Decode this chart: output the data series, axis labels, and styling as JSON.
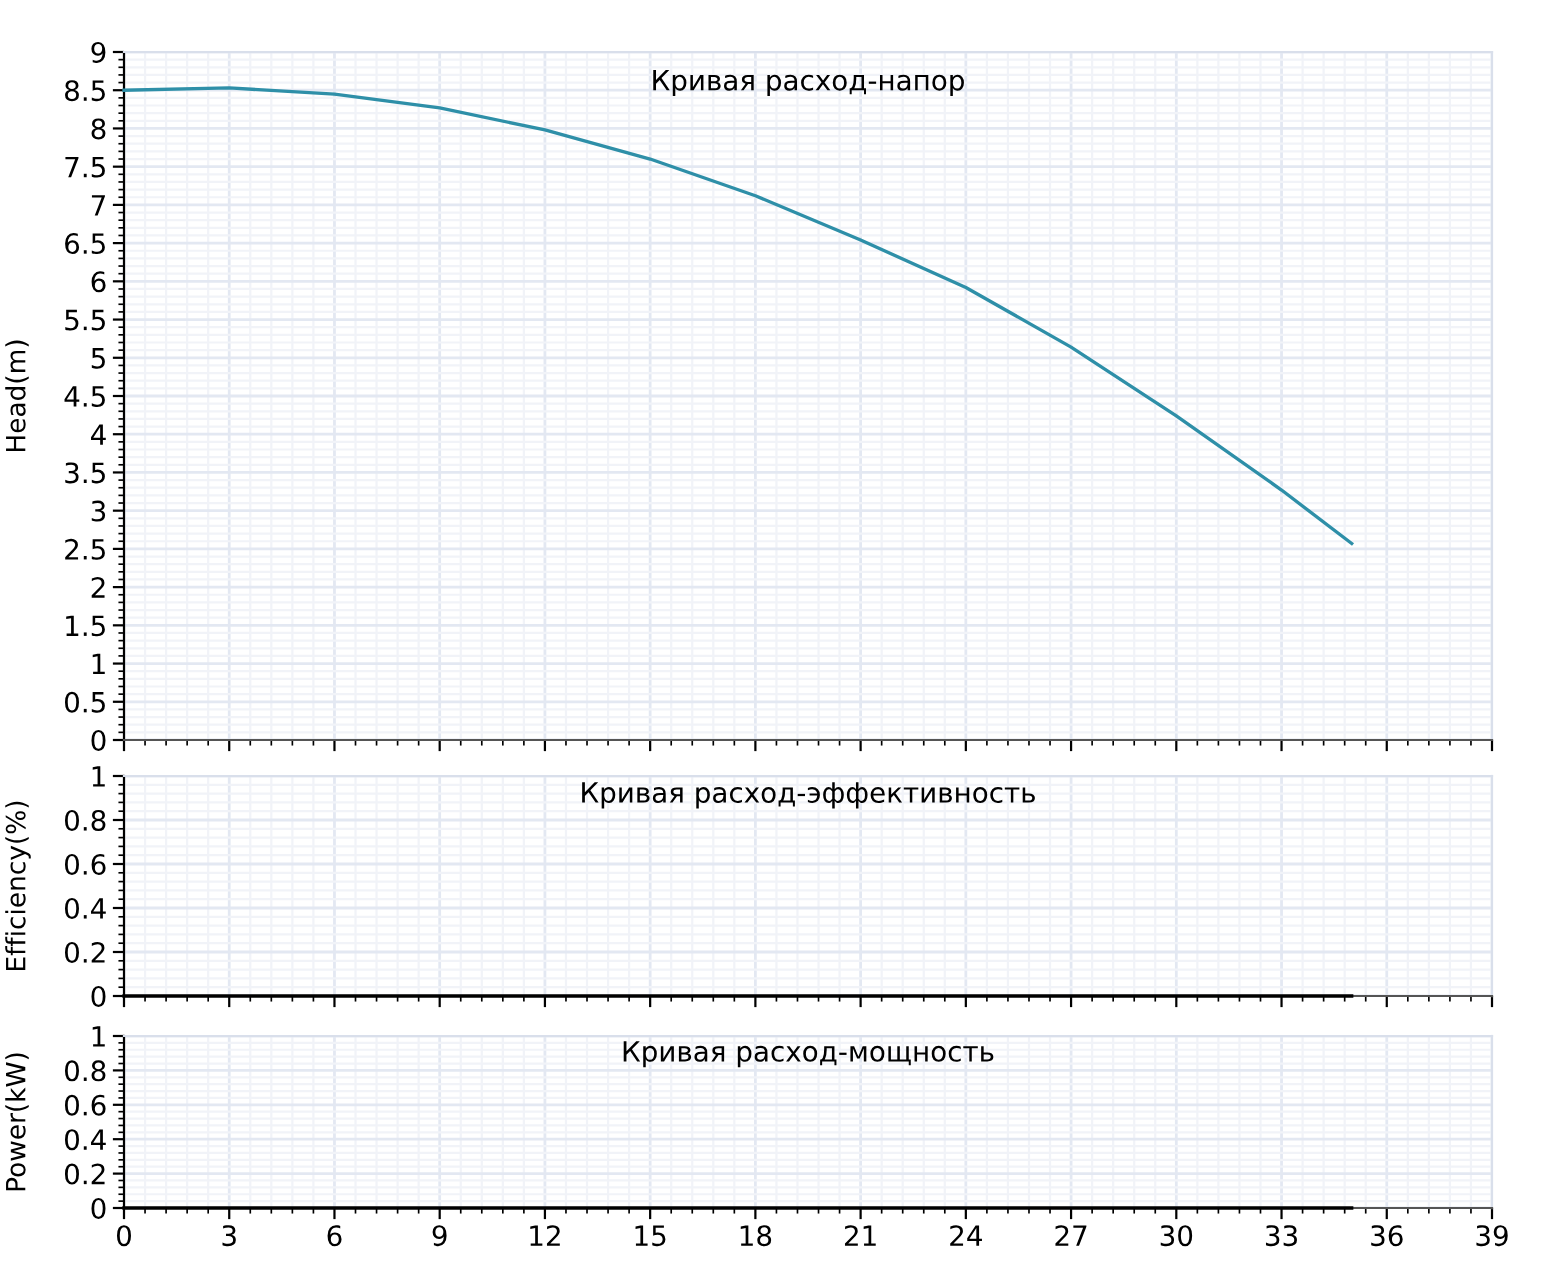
{
  "chart_data": [
    {
      "type": "line",
      "title": "Кривая расход-напор",
      "ylabel": "Head(m)",
      "x": [
        0,
        3,
        6,
        9,
        12,
        15,
        18,
        21,
        24,
        27,
        30,
        33,
        35
      ],
      "series": [
        {
          "color": "#2e8fa8",
          "values": [
            8.5,
            8.53,
            8.45,
            8.27,
            7.98,
            7.6,
            7.12,
            6.54,
            5.92,
            5.14,
            4.24,
            3.27,
            2.57
          ]
        }
      ],
      "xlim": [
        0,
        39
      ],
      "xticks": [
        0,
        3,
        6,
        9,
        12,
        15,
        18,
        21,
        24,
        27,
        30,
        33,
        36,
        39
      ],
      "ylim": [
        0,
        9
      ],
      "yticks": [
        0,
        0.5,
        1,
        1.5,
        2,
        2.5,
        3,
        3.5,
        4,
        4.5,
        5,
        5.5,
        6,
        6.5,
        7,
        7.5,
        8,
        8.5,
        9
      ],
      "grid": true,
      "tick_labels": "y"
    },
    {
      "type": "line",
      "title": "Кривая расход-эффективность",
      "ylabel": "Efficiency(%)",
      "x": [
        0,
        35
      ],
      "series": [
        {
          "color": "#000000",
          "values": [
            0,
            0
          ]
        }
      ],
      "xlim": [
        0,
        39
      ],
      "xticks": [
        0,
        3,
        6,
        9,
        12,
        15,
        18,
        21,
        24,
        27,
        30,
        33,
        36,
        39
      ],
      "ylim": [
        0,
        1
      ],
      "yticks": [
        0,
        0.2,
        0.4,
        0.6,
        0.8,
        1
      ],
      "grid": true,
      "tick_labels": "y"
    },
    {
      "type": "line",
      "title": "Кривая расход-мощность",
      "ylabel": "Power(kW)",
      "x": [
        0,
        35
      ],
      "series": [
        {
          "color": "#000000",
          "values": [
            0,
            0
          ]
        }
      ],
      "xlim": [
        0,
        39
      ],
      "xticks": [
        0,
        3,
        6,
        9,
        12,
        15,
        18,
        21,
        24,
        27,
        30,
        33,
        36,
        39
      ],
      "ylim": [
        0,
        1
      ],
      "yticks": [
        0,
        0.2,
        0.4,
        0.6,
        0.8,
        1
      ],
      "grid": true
    }
  ]
}
